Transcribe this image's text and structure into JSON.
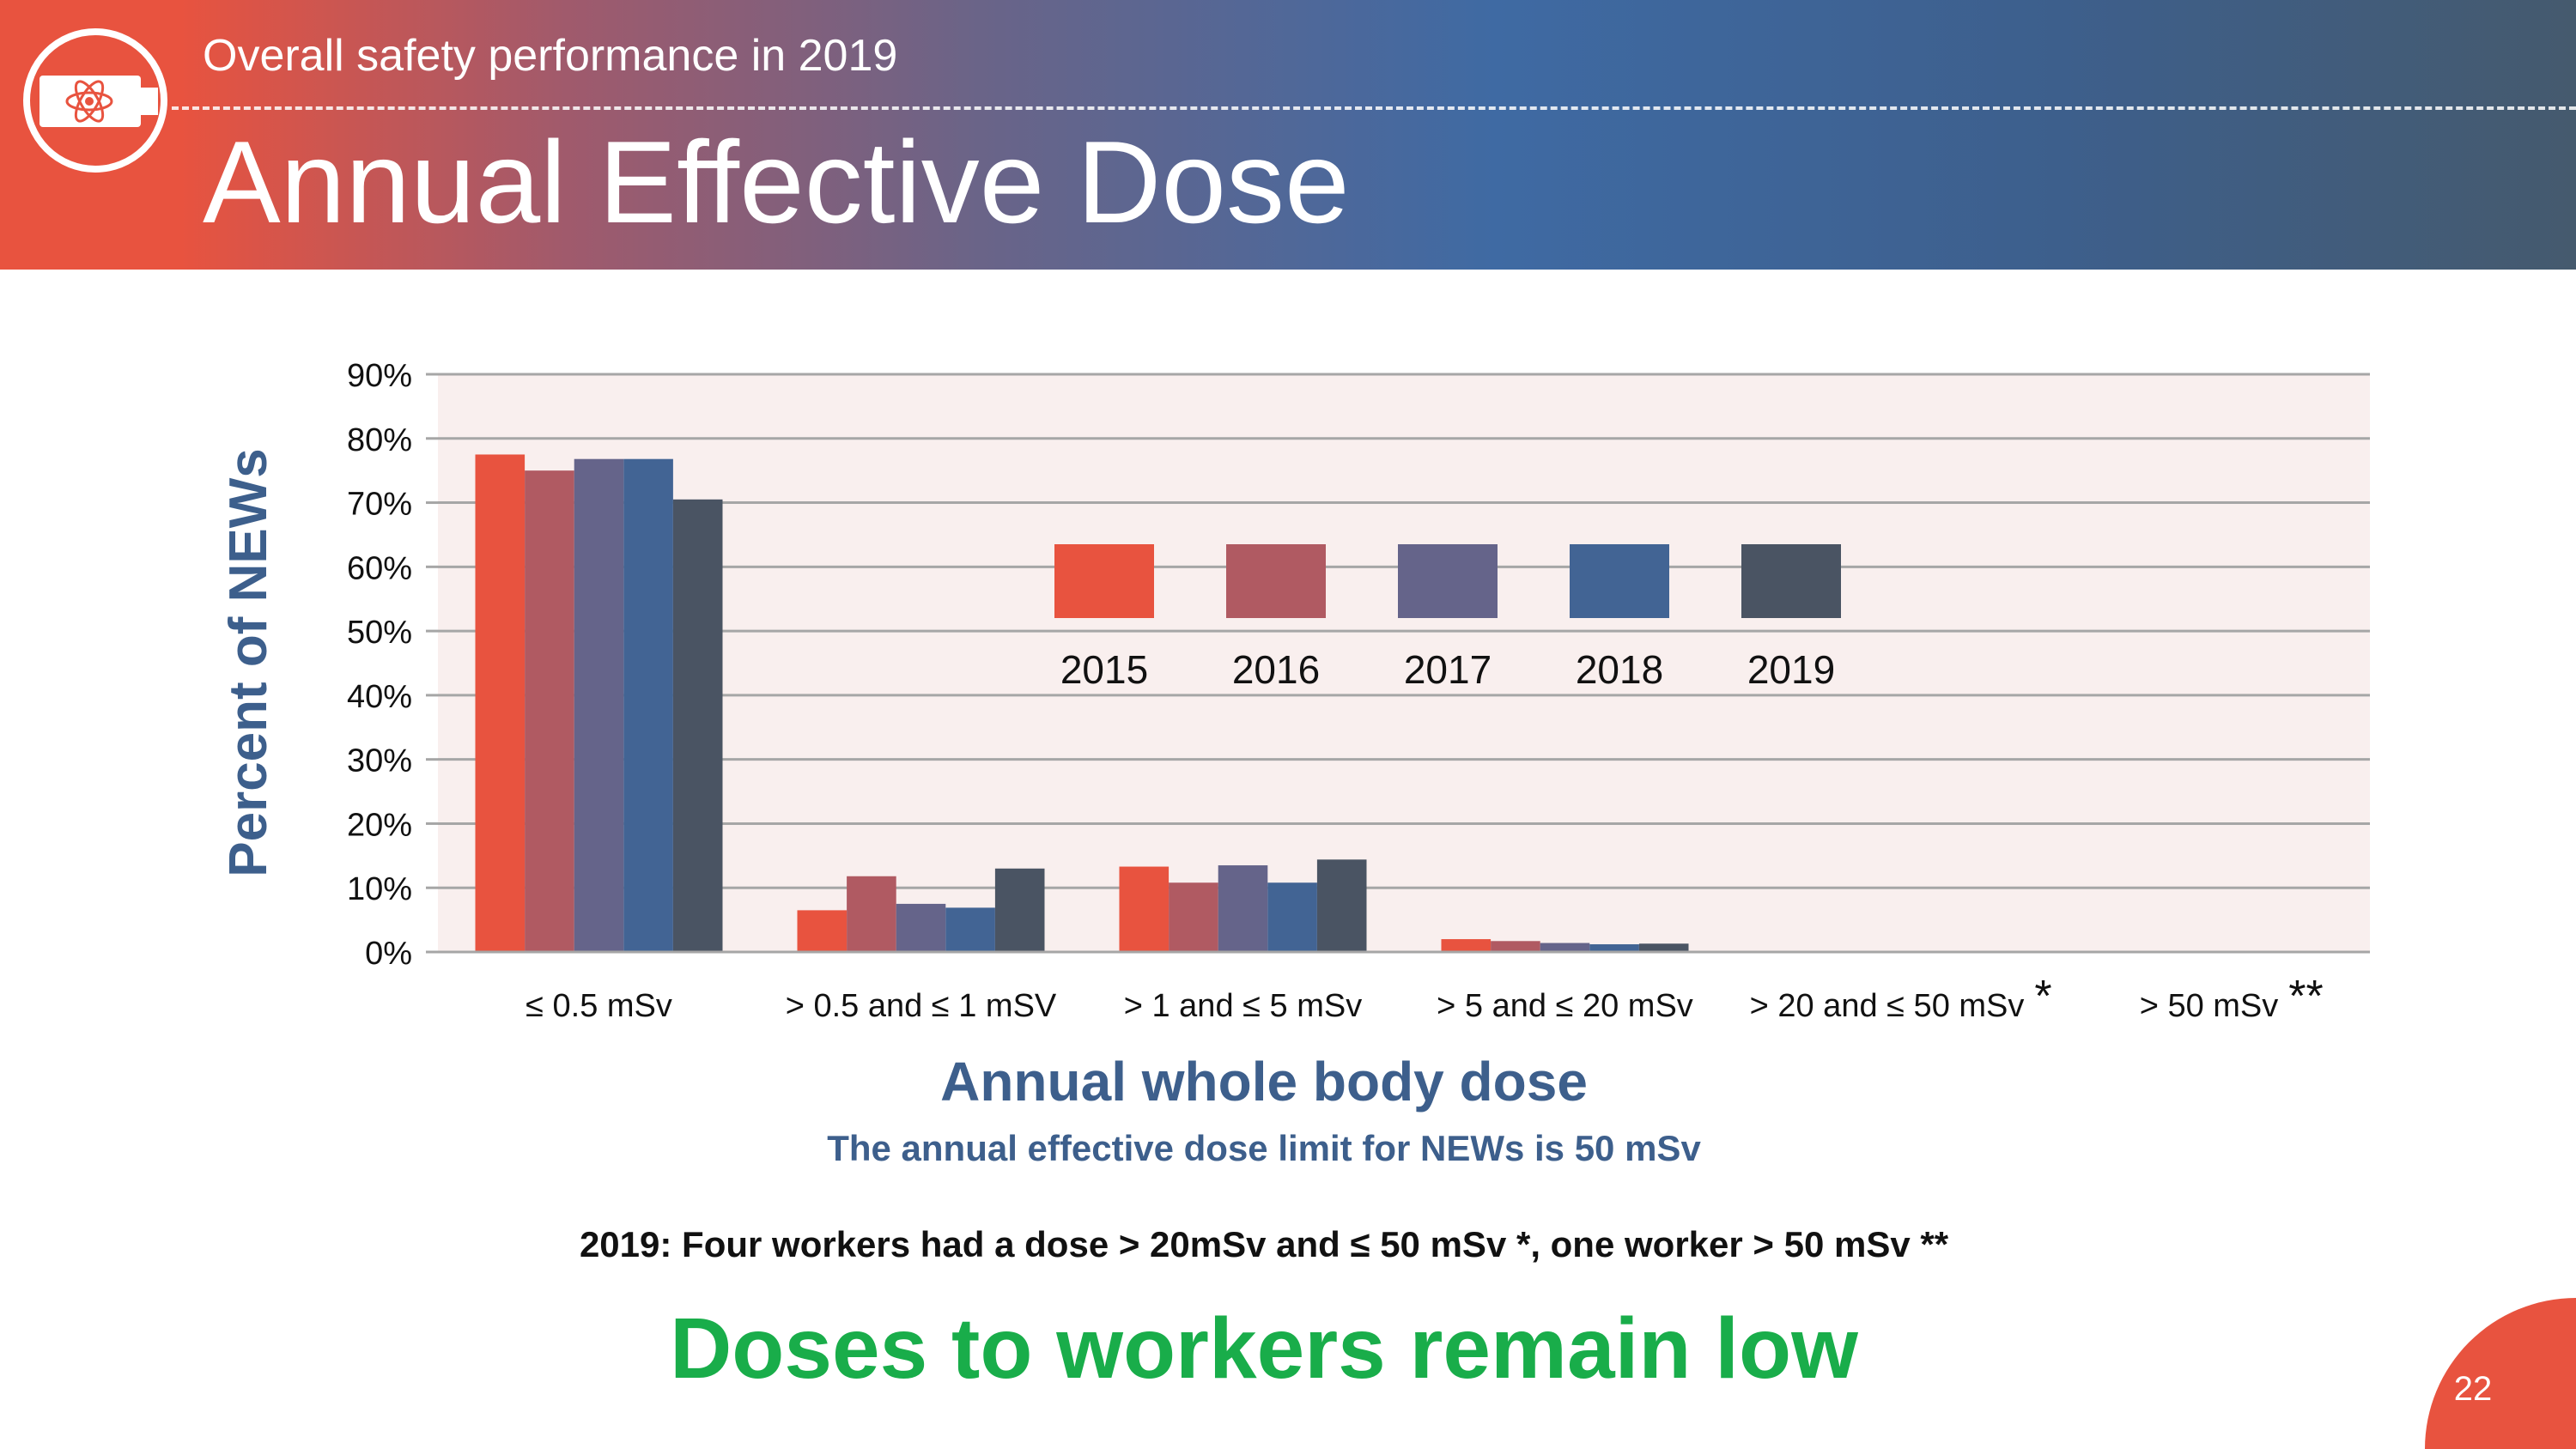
{
  "header": {
    "subtitle": "Overall safety performance in 2019",
    "title": "Annual Effective Dose"
  },
  "colors": {
    "header_start": "#e8533f",
    "header_end": "#455a6e",
    "plot_background": "#f9efee",
    "axis_title": "#3d5f8c",
    "conclusion": "#19ad4a"
  },
  "chart_data": {
    "type": "bar",
    "categories": [
      "≤ 0.5 mSv",
      "> 0.5 and ≤ 1 mSV",
      "> 1 and ≤ 5 mSv",
      "> 5 and ≤ 20 mSv",
      "> 20 and ≤ 50 mSv",
      "> 50 mSv"
    ],
    "category_marks": [
      "",
      "",
      "",
      "",
      "*",
      "**"
    ],
    "series": [
      {
        "name": "2015",
        "color": "#e8533f",
        "values": [
          77.5,
          6.5,
          13.3,
          2.0,
          0,
          0
        ]
      },
      {
        "name": "2016",
        "color": "#b05a62",
        "values": [
          75.0,
          11.8,
          10.8,
          1.7,
          0,
          0
        ]
      },
      {
        "name": "2017",
        "color": "#65648a",
        "values": [
          76.8,
          7.5,
          13.5,
          1.4,
          0,
          0
        ]
      },
      {
        "name": "2018",
        "color": "#426494",
        "values": [
          76.8,
          6.9,
          10.8,
          1.2,
          0,
          0
        ]
      },
      {
        "name": "2019",
        "color": "#4a5463",
        "values": [
          70.5,
          13.0,
          14.4,
          1.3,
          0,
          0
        ]
      }
    ],
    "ylim": [
      0,
      90
    ],
    "yticks": [
      "0%",
      "10%",
      "20%",
      "30%",
      "40%",
      "50%",
      "60%",
      "70%",
      "80%",
      "90%"
    ],
    "ylabel": "Percent of NEWs",
    "xlabel": "Annual whole body dose",
    "xsublabel": "The annual effective dose limit for NEWs is 50 mSv",
    "legend_position": "inside-top-center",
    "grid": true
  },
  "note": "2019: Four workers had a dose > 20mSv and ≤ 50  mSv *, one worker > 50 mSv **",
  "conclusion": "Doses to workers remain low",
  "page_number": "22"
}
